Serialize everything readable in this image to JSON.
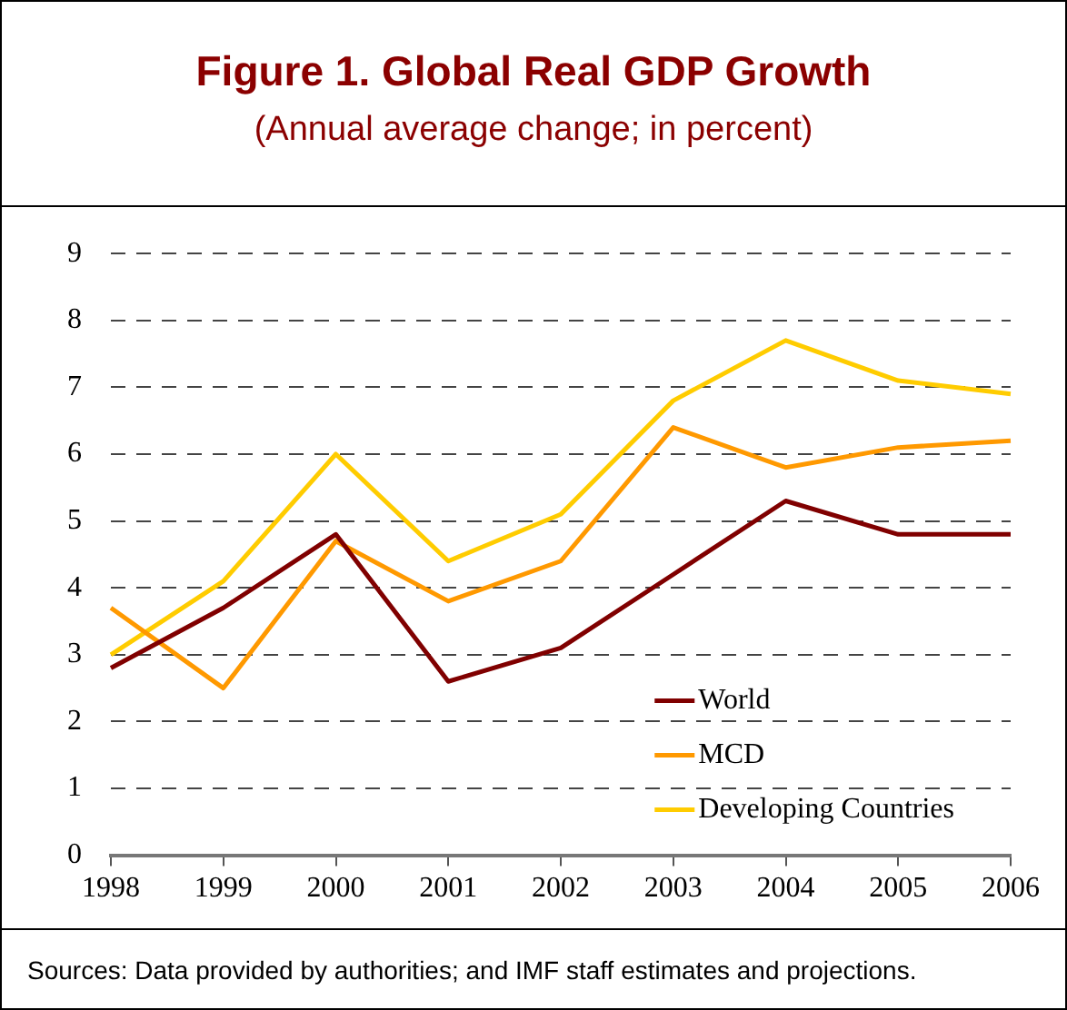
{
  "chart_data": {
    "type": "line",
    "title": "Figure 1. Global Real GDP Growth",
    "subtitle": "(Annual average change; in percent)",
    "categories": [
      "1998",
      "1999",
      "2000",
      "2001",
      "2002",
      "2003",
      "2004",
      "2005",
      "2006"
    ],
    "series": [
      {
        "name": "World",
        "color": "#800000",
        "values": [
          2.8,
          3.7,
          4.8,
          2.6,
          3.1,
          4.2,
          5.3,
          4.8,
          4.8
        ]
      },
      {
        "name": "MCD",
        "color": "#ff9900",
        "values": [
          3.7,
          2.5,
          4.7,
          3.8,
          4.4,
          6.4,
          5.8,
          6.1,
          6.2
        ]
      },
      {
        "name": "Developing Countries",
        "color": "#ffcc00",
        "values": [
          3.0,
          4.1,
          6.0,
          4.4,
          5.1,
          6.8,
          7.7,
          7.1,
          6.9
        ]
      }
    ],
    "ylim": [
      0,
      9
    ],
    "yticks": [
      0,
      1,
      2,
      3,
      4,
      5,
      6,
      7,
      8,
      9
    ],
    "grid": "y",
    "legend": "bottom right",
    "marker": "none",
    "line_style": "solid",
    "annotations": [
      "Sources: Data provided by authorities; and IMF staff estimates and projections."
    ]
  }
}
